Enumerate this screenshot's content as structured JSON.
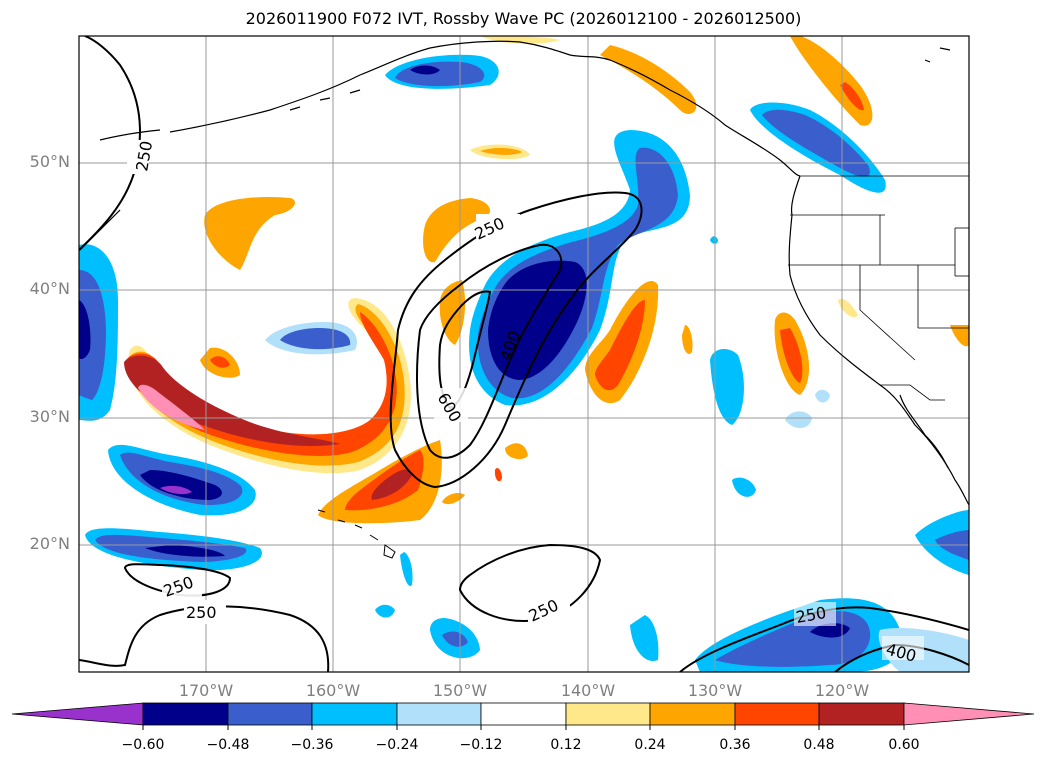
{
  "title": "2026011900 F072 IVT, Rossby Wave PC (2026012100 - 2026012500)",
  "lat_labels": [
    "50°N",
    "40°N",
    "30°N",
    "20°N"
  ],
  "lon_labels": [
    "170°W",
    "160°W",
    "150°W",
    "140°W",
    "130°W",
    "120°W"
  ],
  "contour_labels": [
    "250",
    "250",
    "400",
    "600",
    "250",
    "250",
    "250",
    "250",
    "400"
  ],
  "colorbar": {
    "ticks": [
      "−0.60",
      "−0.48",
      "−0.36",
      "−0.24",
      "−0.12",
      "0.12",
      "0.24",
      "0.36",
      "0.48",
      "0.60"
    ],
    "colors": [
      "#9932cc",
      "#00008b",
      "#3a5fcd",
      "#00bfff",
      "#b0e0fa",
      "#ffffff",
      "#ffe88a",
      "#ffa500",
      "#ff4500",
      "#b22222",
      "#ff8fb5"
    ]
  }
}
